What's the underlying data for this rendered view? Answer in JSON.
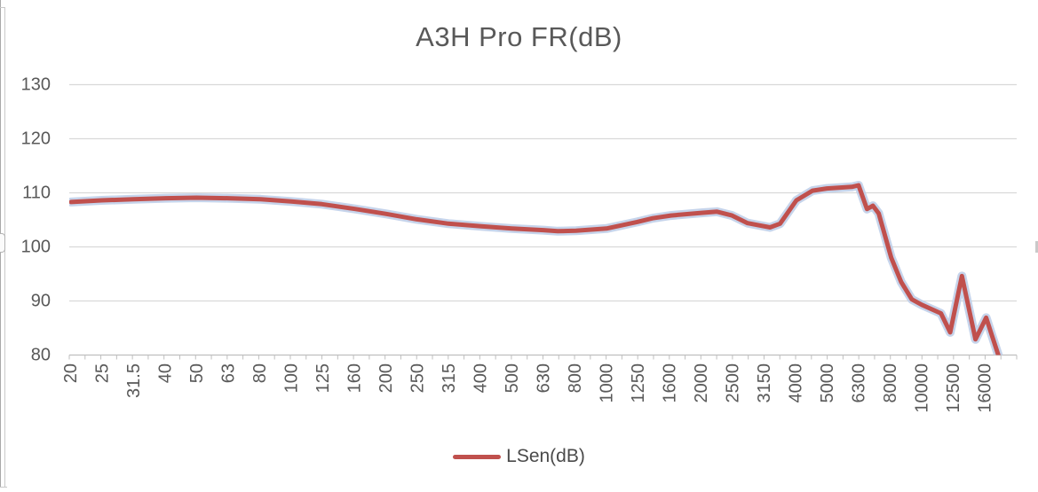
{
  "chart_data": {
    "type": "line",
    "title": "A3H Pro FR(dB)",
    "x_categories": [
      "20",
      "25",
      "31.5",
      "40",
      "50",
      "63",
      "80",
      "100",
      "125",
      "160",
      "200",
      "250",
      "315",
      "400",
      "500",
      "630",
      "800",
      "1000",
      "1250",
      "1600",
      "2000",
      "2500",
      "3150",
      "4000",
      "5000",
      "6300",
      "8000",
      "10000",
      "12500",
      "16000"
    ],
    "y_ticks": [
      80,
      90,
      100,
      110,
      120,
      130
    ],
    "ylim": [
      80,
      130
    ],
    "xlabel": "",
    "ylabel": "",
    "grid": "horizontal",
    "legend_position": "bottom-center",
    "colors": {
      "series": "#C0504D",
      "series_halo": "#BCCDE8",
      "gridline": "#D9D9D9",
      "axis": "#BFBFBF",
      "text": "#595959"
    },
    "series": [
      {
        "name": "LSen(dB)",
        "color": "#C0504D",
        "points": [
          [
            20,
            108.3
          ],
          [
            25,
            108.6
          ],
          [
            31.5,
            108.8
          ],
          [
            40,
            109.0
          ],
          [
            50,
            109.1
          ],
          [
            63,
            109.0
          ],
          [
            80,
            108.8
          ],
          [
            100,
            108.4
          ],
          [
            125,
            107.9
          ],
          [
            160,
            107.0
          ],
          [
            200,
            106.1
          ],
          [
            250,
            105.1
          ],
          [
            315,
            104.3
          ],
          [
            400,
            103.8
          ],
          [
            500,
            103.4
          ],
          [
            630,
            103.1
          ],
          [
            700,
            102.9
          ],
          [
            800,
            103.0
          ],
          [
            1000,
            103.4
          ],
          [
            1250,
            104.6
          ],
          [
            1400,
            105.3
          ],
          [
            1600,
            105.8
          ],
          [
            2000,
            106.3
          ],
          [
            2240,
            106.5
          ],
          [
            2500,
            105.8
          ],
          [
            2800,
            104.4
          ],
          [
            3300,
            103.6
          ],
          [
            3550,
            104.3
          ],
          [
            4000,
            108.6
          ],
          [
            4500,
            110.4
          ],
          [
            5000,
            110.8
          ],
          [
            6000,
            111.1
          ],
          [
            6300,
            111.4
          ],
          [
            6700,
            107.0
          ],
          [
            7000,
            107.6
          ],
          [
            7300,
            106.2
          ],
          [
            8000,
            98.0
          ],
          [
            8600,
            93.5
          ],
          [
            9300,
            90.3
          ],
          [
            10000,
            89.3
          ],
          [
            11500,
            87.7
          ],
          [
            12300,
            84.2
          ],
          [
            13400,
            94.6
          ],
          [
            14800,
            82.9
          ],
          [
            16000,
            86.9
          ],
          [
            17600,
            79.5
          ],
          [
            18200,
            78.5
          ]
        ]
      }
    ]
  }
}
